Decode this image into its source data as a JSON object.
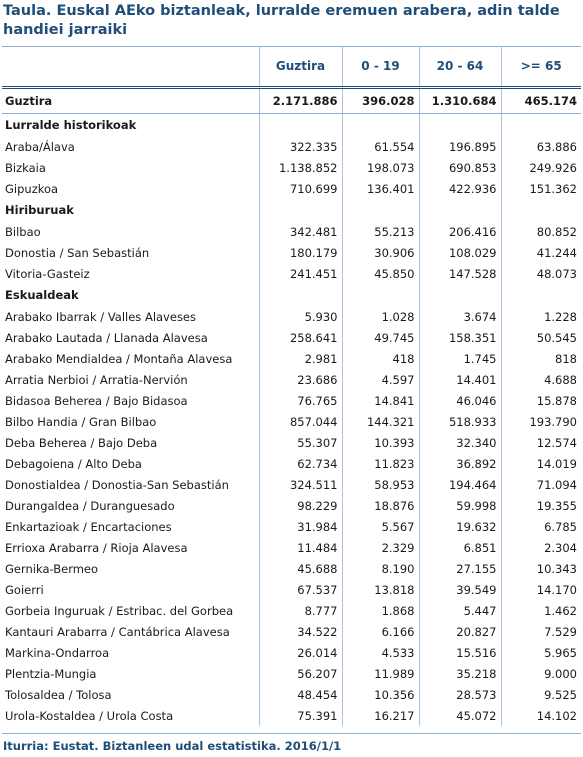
{
  "title": "Taula. Euskal AEko biztanleak, lurralde eremuen arabera, adin talde handiei jarraiki",
  "columns": [
    "",
    "Guztira",
    "0 - 19",
    "20 - 64",
    ">= 65"
  ],
  "total": {
    "label": "Guztira",
    "values": [
      "2.171.886",
      "396.028",
      "1.310.684",
      "465.174"
    ]
  },
  "sections": [
    {
      "heading": "Lurralde historikoak",
      "rows": [
        {
          "label": "Araba/Álava",
          "values": [
            "322.335",
            "61.554",
            "196.895",
            "63.886"
          ]
        },
        {
          "label": "Bizkaia",
          "values": [
            "1.138.852",
            "198.073",
            "690.853",
            "249.926"
          ]
        },
        {
          "label": "Gipuzkoa",
          "values": [
            "710.699",
            "136.401",
            "422.936",
            "151.362"
          ]
        }
      ]
    },
    {
      "heading": "Hiriburuak",
      "rows": [
        {
          "label": "Bilbao",
          "values": [
            "342.481",
            "55.213",
            "206.416",
            "80.852"
          ]
        },
        {
          "label": "Donostia / San Sebastián",
          "values": [
            "180.179",
            "30.906",
            "108.029",
            "41.244"
          ]
        },
        {
          "label": "Vitoria-Gasteiz",
          "values": [
            "241.451",
            "45.850",
            "147.528",
            "48.073"
          ]
        }
      ]
    },
    {
      "heading": "Eskualdeak",
      "rows": [
        {
          "label": "Arabako Ibarrak / Valles Alaveses",
          "values": [
            "5.930",
            "1.028",
            "3.674",
            "1.228"
          ]
        },
        {
          "label": "Arabako Lautada / Llanada Alavesa",
          "values": [
            "258.641",
            "49.745",
            "158.351",
            "50.545"
          ]
        },
        {
          "label": "Arabako Mendialdea / Montaña Alavesa",
          "values": [
            "2.981",
            "418",
            "1.745",
            "818"
          ]
        },
        {
          "label": "Arratia Nerbioi / Arratia-Nervión",
          "values": [
            "23.686",
            "4.597",
            "14.401",
            "4.688"
          ]
        },
        {
          "label": "Bidasoa Beherea / Bajo Bidasoa",
          "values": [
            "76.765",
            "14.841",
            "46.046",
            "15.878"
          ]
        },
        {
          "label": "Bilbo Handia / Gran Bilbao",
          "values": [
            "857.044",
            "144.321",
            "518.933",
            "193.790"
          ]
        },
        {
          "label": "Deba Beherea / Bajo Deba",
          "values": [
            "55.307",
            "10.393",
            "32.340",
            "12.574"
          ]
        },
        {
          "label": "Debagoiena / Alto Deba",
          "values": [
            "62.734",
            "11.823",
            "36.892",
            "14.019"
          ]
        },
        {
          "label": "Donostialdea / Donostia-San Sebastián",
          "values": [
            "324.511",
            "58.953",
            "194.464",
            "71.094"
          ]
        },
        {
          "label": "Durangaldea / Duranguesado",
          "values": [
            "98.229",
            "18.876",
            "59.998",
            "19.355"
          ]
        },
        {
          "label": "Enkartazioak / Encartaciones",
          "values": [
            "31.984",
            "5.567",
            "19.632",
            "6.785"
          ]
        },
        {
          "label": "Errioxa Arabarra / Rioja Alavesa",
          "values": [
            "11.484",
            "2.329",
            "6.851",
            "2.304"
          ]
        },
        {
          "label": "Gernika-Bermeo",
          "values": [
            "45.688",
            "8.190",
            "27.155",
            "10.343"
          ]
        },
        {
          "label": "Goierri",
          "values": [
            "67.537",
            "13.818",
            "39.549",
            "14.170"
          ]
        },
        {
          "label": "Gorbeia Inguruak / Estribac. del Gorbea",
          "values": [
            "8.777",
            "1.868",
            "5.447",
            "1.462"
          ]
        },
        {
          "label": "Kantauri Arabarra / Cantábrica Alavesa",
          "values": [
            "34.522",
            "6.166",
            "20.827",
            "7.529"
          ]
        },
        {
          "label": "Markina-Ondarroa",
          "values": [
            "26.014",
            "4.533",
            "15.516",
            "5.965"
          ]
        },
        {
          "label": "Plentzia-Mungia",
          "values": [
            "56.207",
            "11.989",
            "35.218",
            "9.000"
          ]
        },
        {
          "label": "Tolosaldea / Tolosa",
          "values": [
            "48.454",
            "10.356",
            "28.573",
            "9.525"
          ]
        },
        {
          "label": "Urola-Kostaldea / Urola Costa",
          "values": [
            "75.391",
            "16.217",
            "45.072",
            "14.102"
          ]
        }
      ]
    }
  ],
  "footnote": "Iturria: Eustat. Biztanleen udal estatistika. 2016/1/1",
  "colors": {
    "title": "#1f4e79",
    "grid": "#a9c4de"
  }
}
